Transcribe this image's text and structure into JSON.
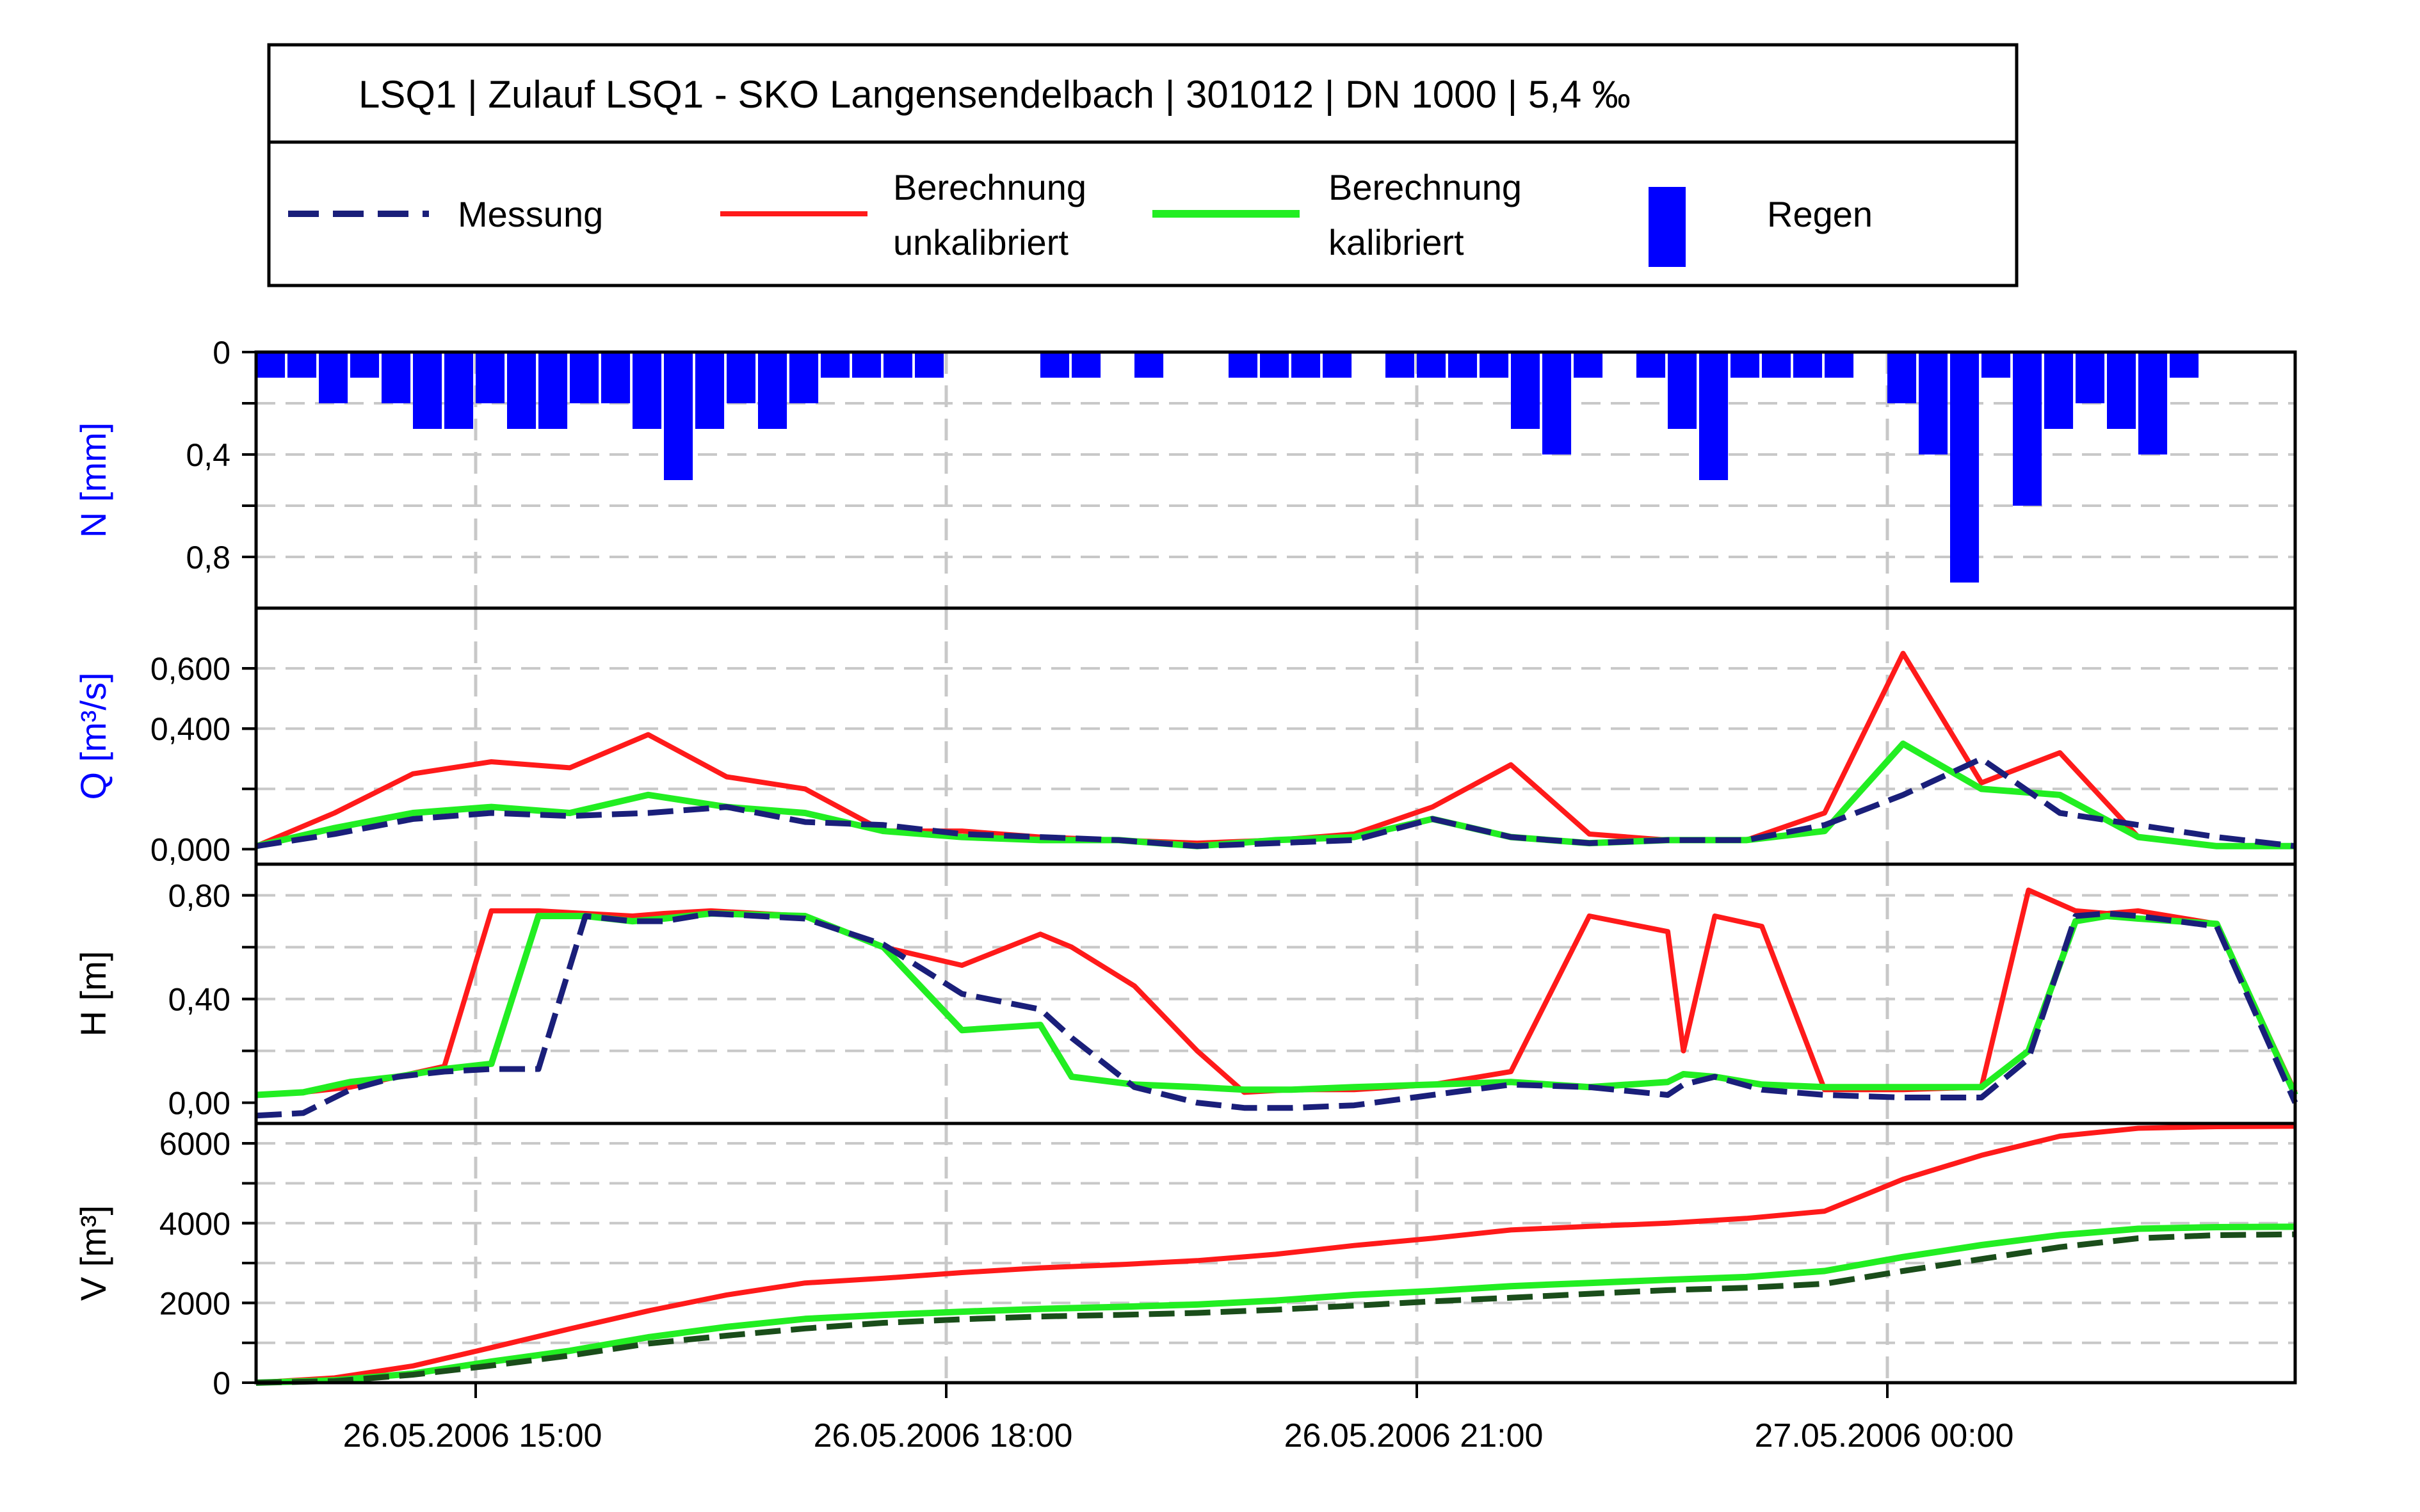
{
  "header": {
    "title": "LSQ1 | Zulauf LSQ1 - SKO Langensendelbach | 301012 | DN 1000 | 5,4 ‰"
  },
  "legend": {
    "items": [
      {
        "line1": "Messung",
        "line2": "",
        "color": "#1a1f7a",
        "style": "dashed"
      },
      {
        "line1": "Berechnung",
        "line2": "unkalibriert",
        "color": "#ff1a1a",
        "style": "solid"
      },
      {
        "line1": "Berechnung",
        "line2": "kalibriert",
        "color": "#22ee22",
        "style": "solid"
      },
      {
        "line1": "Regen",
        "line2": "",
        "color": "#0000ff",
        "style": "bar"
      }
    ]
  },
  "colors": {
    "messung": "#1a1f7a",
    "messung_volume": "#1a4d1a",
    "unkalibriert": "#ff1a1a",
    "kalibriert": "#22ee22",
    "regen": "#0000ff",
    "grid": "#c8c8c8"
  },
  "chart_data": [
    {
      "type": "bar",
      "panel": "rain",
      "ylabel": "N [mm]",
      "ylabel_color": "#0000ff",
      "ylim": [
        0,
        1
      ],
      "inverted": true,
      "yticks": [
        "0",
        "0,4",
        "0,8"
      ],
      "ytick_values": [
        0,
        0.4,
        0.8
      ],
      "x_hours": [
        0,
        0.2,
        0.4,
        0.6,
        0.8,
        1.0,
        1.2,
        1.4,
        1.6,
        1.8,
        2.0,
        2.2,
        2.4,
        2.6,
        2.8,
        3.0,
        3.2,
        3.4,
        3.6,
        3.8,
        4.0,
        4.2,
        4.4,
        4.6,
        4.8,
        5.0,
        5.2,
        5.4,
        5.6,
        5.8,
        6.0,
        6.2,
        6.4,
        6.6,
        6.8,
        7.0,
        7.2,
        7.4,
        7.6,
        7.8,
        8.0,
        8.2,
        8.4,
        8.6,
        8.8,
        9.0,
        9.2,
        9.4,
        9.6,
        9.8,
        10.0,
        10.2,
        10.4,
        10.6,
        10.8,
        11.0,
        11.2,
        11.4,
        11.6,
        11.8,
        12.0,
        12.2
      ],
      "values": [
        0.1,
        0.1,
        0.2,
        0.1,
        0.2,
        0.3,
        0.3,
        0.2,
        0.3,
        0.3,
        0.2,
        0.2,
        0.3,
        0.5,
        0.3,
        0.2,
        0.3,
        0.2,
        0.1,
        0.1,
        0.1,
        0.1,
        0,
        0,
        0,
        0.1,
        0.1,
        0,
        0.1,
        0,
        0,
        0.1,
        0.1,
        0.1,
        0.1,
        0,
        0.1,
        0.1,
        0.1,
        0.1,
        0.3,
        0.4,
        0.1,
        0,
        0.1,
        0.3,
        0.5,
        0.1,
        0.1,
        0.1,
        0.1,
        0,
        0.2,
        0.4,
        0.9,
        0.1,
        0.6,
        0.3,
        0.2,
        0.3,
        0.4,
        0.1
      ]
    },
    {
      "type": "line",
      "panel": "flow",
      "ylabel": "Q [m³/s]",
      "ylabel_color": "#0000ff",
      "ylim": [
        -0.05,
        0.8
      ],
      "yticks": [
        "0,000",
        "0,400",
        "0,600"
      ],
      "ytick_values": [
        0,
        0.4,
        0.6
      ],
      "x_hours": [
        0,
        0.5,
        1,
        1.5,
        2,
        2.5,
        3,
        3.5,
        4,
        4.5,
        5,
        5.5,
        6,
        6.5,
        7,
        7.5,
        8,
        8.5,
        9,
        9.5,
        10,
        10.5,
        11,
        11.5,
        12,
        12.5,
        13
      ],
      "series": [
        {
          "name": "Messung",
          "values": [
            0.01,
            0.05,
            0.1,
            0.12,
            0.11,
            0.12,
            0.14,
            0.09,
            0.08,
            0.05,
            0.04,
            0.03,
            0.01,
            0.02,
            0.03,
            0.1,
            0.04,
            0.02,
            0.03,
            0.03,
            0.08,
            0.18,
            0.3,
            0.12,
            0.08,
            0.04,
            0.01
          ]
        },
        {
          "name": "Berechnung unkalibriert",
          "values": [
            0.01,
            0.12,
            0.25,
            0.29,
            0.27,
            0.38,
            0.24,
            0.2,
            0.06,
            0.06,
            0.04,
            0.03,
            0.02,
            0.03,
            0.05,
            0.14,
            0.28,
            0.05,
            0.03,
            0.03,
            0.12,
            0.65,
            0.22,
            0.32,
            0.04,
            0.01,
            0.01
          ]
        },
        {
          "name": "Berechnung kalibriert",
          "values": [
            0.01,
            0.07,
            0.12,
            0.14,
            0.12,
            0.18,
            0.14,
            0.12,
            0.06,
            0.04,
            0.03,
            0.03,
            0.01,
            0.03,
            0.04,
            0.1,
            0.04,
            0.02,
            0.03,
            0.03,
            0.06,
            0.35,
            0.2,
            0.18,
            0.04,
            0.01,
            0.01
          ]
        }
      ]
    },
    {
      "type": "line",
      "panel": "height",
      "ylabel": "H [m]",
      "ylabel_color": "#000000",
      "ylim": [
        -0.08,
        0.92
      ],
      "yticks": [
        "0,00",
        "0,40",
        "0,80"
      ],
      "ytick_values": [
        0,
        0.4,
        0.8
      ],
      "x_hours": [
        0,
        0.3,
        0.6,
        0.9,
        1.2,
        1.5,
        1.8,
        2.1,
        2.4,
        2.6,
        2.9,
        3.5,
        4.0,
        4.5,
        5.0,
        5.2,
        5.6,
        6.0,
        6.3,
        6.6,
        7.0,
        7.5,
        8.0,
        8.5,
        9.0,
        9.1,
        9.3,
        9.6,
        10.0,
        10.5,
        11.0,
        11.3,
        11.6,
        11.8,
        12.0,
        12.5,
        13.0
      ],
      "series": [
        {
          "name": "Messung",
          "values": [
            -0.05,
            -0.04,
            0.05,
            0.1,
            0.12,
            0.13,
            0.13,
            0.72,
            0.7,
            0.7,
            0.73,
            0.71,
            0.61,
            0.42,
            0.36,
            0.25,
            0.06,
            0.0,
            -0.02,
            -0.02,
            -0.01,
            0.03,
            0.07,
            0.06,
            0.03,
            0.07,
            0.1,
            0.05,
            0.03,
            0.02,
            0.02,
            0.17,
            0.72,
            0.73,
            0.72,
            0.68,
            0.0
          ]
        },
        {
          "name": "Berechnung unkalibriert",
          "values": [
            0.03,
            0.04,
            0.06,
            0.1,
            0.14,
            0.74,
            0.74,
            0.73,
            0.72,
            0.73,
            0.74,
            0.72,
            0.6,
            0.53,
            0.65,
            0.6,
            0.45,
            0.2,
            0.04,
            0.05,
            0.05,
            0.07,
            0.12,
            0.72,
            0.66,
            0.2,
            0.72,
            0.68,
            0.05,
            0.05,
            0.06,
            0.82,
            0.74,
            0.73,
            0.74,
            0.69,
            0.04
          ]
        },
        {
          "name": "Berechnung kalibriert",
          "values": [
            0.03,
            0.04,
            0.08,
            0.1,
            0.13,
            0.15,
            0.72,
            0.72,
            0.7,
            0.71,
            0.73,
            0.72,
            0.6,
            0.28,
            0.3,
            0.1,
            0.07,
            0.06,
            0.05,
            0.05,
            0.06,
            0.07,
            0.08,
            0.06,
            0.08,
            0.11,
            0.1,
            0.07,
            0.06,
            0.06,
            0.06,
            0.2,
            0.7,
            0.72,
            0.71,
            0.69,
            0.03
          ]
        }
      ]
    },
    {
      "type": "line",
      "panel": "volume",
      "ylabel": "V [m³]",
      "ylabel_color": "#000000",
      "ylim": [
        0,
        6500
      ],
      "yticks": [
        "0",
        "2000",
        "4000",
        "6000"
      ],
      "ytick_values": [
        0,
        2000,
        4000,
        6000
      ],
      "x_hours": [
        0,
        0.5,
        1,
        1.5,
        2,
        2.5,
        3,
        3.5,
        4,
        4.5,
        5,
        5.5,
        6,
        6.5,
        7,
        7.5,
        8,
        8.5,
        9,
        9.5,
        10,
        10.5,
        11,
        11.5,
        12,
        12.5,
        13
      ],
      "series": [
        {
          "name": "Messung",
          "values": [
            0,
            40,
            200,
            430,
            680,
            980,
            1180,
            1360,
            1500,
            1590,
            1660,
            1700,
            1750,
            1830,
            1930,
            2040,
            2130,
            2230,
            2320,
            2380,
            2480,
            2800,
            3100,
            3400,
            3620,
            3700,
            3720
          ]
        },
        {
          "name": "Berechnung unkalibriert",
          "values": [
            0,
            120,
            420,
            880,
            1350,
            1800,
            2200,
            2500,
            2620,
            2760,
            2880,
            2960,
            3060,
            3220,
            3440,
            3620,
            3830,
            3920,
            4000,
            4120,
            4300,
            5100,
            5700,
            6180,
            6380,
            6420,
            6430
          ]
        },
        {
          "name": "Berechnung kalibriert",
          "values": [
            0,
            60,
            230,
            530,
            800,
            1140,
            1400,
            1600,
            1700,
            1780,
            1850,
            1900,
            1960,
            2060,
            2200,
            2300,
            2420,
            2500,
            2580,
            2650,
            2800,
            3150,
            3450,
            3700,
            3860,
            3900,
            3910
          ]
        }
      ]
    }
  ],
  "xaxis": {
    "xlim_hours": [
      0,
      13
    ],
    "ticks": [
      {
        "label": "26.05.2006 15:00",
        "hour": 1.4
      },
      {
        "label": "26.05.2006 18:00",
        "hour": 4.4
      },
      {
        "label": "26.05.2006 21:00",
        "hour": 7.4
      },
      {
        "label": "27.05.2006 00:00",
        "hour": 10.4
      }
    ]
  }
}
